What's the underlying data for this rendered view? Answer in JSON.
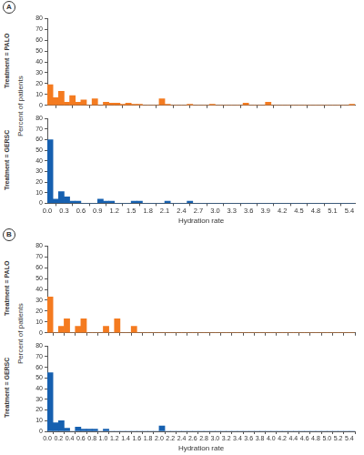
{
  "chart_data": [
    {
      "type": "histogram",
      "annotation": "A",
      "row_label": "Treatment = PALO",
      "ylabel": "Percent of patients",
      "color": "#f47b20",
      "grid": false,
      "tick_labels": "y",
      "bins": [
        0,
        0.1,
        0.2,
        0.3,
        0.4,
        0.5,
        0.6,
        0.7,
        0.8,
        0.9,
        1,
        1.1,
        1.2,
        1.3,
        1.4,
        1.5,
        1.6,
        1.7,
        1.8,
        1.9,
        2,
        2.1,
        2.2,
        2.3,
        2.4,
        2.5,
        2.6,
        2.7,
        2.8,
        2.9,
        3,
        3.1,
        3.2,
        3.3,
        3.4,
        3.5,
        3.6,
        3.7,
        3.8,
        3.9,
        4,
        4.1,
        4.2,
        4.3,
        4.4,
        4.5,
        4.6,
        4.7,
        4.8,
        4.9,
        5,
        5.1,
        5.2,
        5.3,
        5.4,
        5.5
      ],
      "values": [
        19,
        7,
        13,
        3,
        9,
        3,
        5,
        0,
        6,
        0,
        3,
        2,
        2,
        1,
        2,
        1,
        1,
        0,
        0,
        0,
        6,
        1,
        0,
        0,
        0,
        1,
        0,
        0,
        0,
        1,
        0,
        0,
        0,
        0,
        0,
        2,
        0,
        0,
        0,
        3,
        0,
        0,
        0,
        0,
        0,
        0,
        0,
        0,
        0,
        0,
        0,
        0,
        0,
        0,
        1
      ],
      "xlim": [
        0,
        5.5
      ],
      "xticks": [
        {
          "value": 0,
          "label": "0.0"
        },
        0.3,
        0.6,
        0.9,
        1.2,
        1.5,
        1.8,
        2.1,
        2.4,
        2.7,
        {
          "value": 3,
          "label": "3.0"
        },
        3.3,
        3.6,
        3.9,
        4.2,
        4.5,
        4.8,
        5.1,
        5.4
      ],
      "ylim": [
        0,
        80
      ],
      "yticks": [
        0,
        10,
        20,
        30,
        40,
        50,
        60,
        70,
        80
      ]
    },
    {
      "type": "histogram",
      "row_label": "Treatment = GERSC",
      "xlabel": "Hydration rate",
      "color": "#1660b0",
      "grid": false,
      "bins": [
        0,
        0.1,
        0.2,
        0.3,
        0.4,
        0.5,
        0.6,
        0.7,
        0.8,
        0.9,
        1,
        1.1,
        1.2,
        1.3,
        1.4,
        1.5,
        1.6,
        1.7,
        1.8,
        1.9,
        2,
        2.1,
        2.2,
        2.3,
        2.4,
        2.5,
        2.6,
        2.7,
        2.8,
        2.9,
        3,
        3.1,
        3.2,
        3.3,
        3.4,
        3.5,
        3.6,
        3.7,
        3.8,
        3.9,
        4,
        4.1,
        4.2,
        4.3,
        4.4,
        4.5,
        4.6,
        4.7,
        4.8,
        4.9,
        5,
        5.1,
        5.2,
        5.3,
        5.4,
        5.5
      ],
      "values": [
        60,
        4,
        11,
        6,
        2,
        2,
        0,
        0,
        0,
        4,
        2,
        2,
        0,
        0,
        0,
        2,
        2,
        0,
        0,
        0,
        0,
        2,
        0,
        0,
        0,
        2,
        0,
        0,
        0,
        0,
        0,
        0,
        0,
        0,
        0,
        0,
        0,
        0,
        0,
        0,
        0,
        0,
        0,
        0,
        0,
        0,
        0,
        0,
        0,
        0,
        0,
        0,
        0,
        0,
        0
      ],
      "xlim": [
        0,
        5.5
      ],
      "xticks": [
        {
          "value": 0,
          "label": "0.0"
        },
        0.3,
        0.6,
        0.9,
        1.2,
        1.5,
        1.8,
        2.1,
        2.4,
        2.7,
        {
          "value": 3,
          "label": "3.0"
        },
        3.3,
        3.6,
        3.9,
        4.2,
        4.5,
        4.8,
        5.1,
        5.4
      ],
      "ylim": [
        0,
        80
      ],
      "yticks": [
        0,
        10,
        20,
        30,
        40,
        50,
        60,
        70,
        80
      ]
    },
    {
      "type": "histogram",
      "annotation": "B",
      "row_label": "Treatment = PALO",
      "ylabel": "Percent of patients",
      "color": "#f47b20",
      "grid": false,
      "tick_labels": "y",
      "bins": [
        0,
        0.1,
        0.2,
        0.3,
        0.4,
        0.5,
        0.6,
        0.7,
        0.8,
        0.9,
        1,
        1.1,
        1.2,
        1.3,
        1.4,
        1.5,
        1.6,
        1.7,
        1.8,
        1.9,
        2,
        2.1,
        2.2,
        2.3,
        2.4,
        2.5,
        2.6,
        2.7,
        2.8,
        2.9,
        3,
        3.1,
        3.2,
        3.3,
        3.4,
        3.5,
        3.6,
        3.7,
        3.8,
        3.9,
        4,
        4.1,
        4.2,
        4.3,
        4.4,
        4.5,
        4.6,
        4.7,
        4.8,
        4.9,
        5,
        5.1,
        5.2,
        5.3,
        5.4,
        5.5
      ],
      "values": [
        33,
        0,
        6,
        13,
        0,
        6,
        13,
        0,
        0,
        0,
        6,
        0,
        13,
        0,
        0,
        6,
        0,
        0,
        0,
        0,
        0,
        0,
        0,
        0,
        0,
        0,
        0,
        0,
        0,
        0,
        0,
        0,
        0,
        0,
        0,
        0,
        0,
        0,
        0,
        0,
        0,
        0,
        0,
        0,
        0,
        0,
        0,
        0,
        0,
        0,
        0,
        0,
        0,
        0,
        0
      ],
      "xlim": [
        0,
        5.5
      ],
      "xticks": [
        {
          "value": 0,
          "label": "0.0"
        },
        0.2,
        0.4,
        0.6,
        0.8,
        {
          "value": 1,
          "label": "1.0"
        },
        1.2,
        1.4,
        1.6,
        1.8,
        {
          "value": 2,
          "label": "2.0"
        },
        2.2,
        2.4,
        2.6,
        2.8,
        {
          "value": 3,
          "label": "3.0"
        },
        3.2,
        3.4,
        3.6,
        3.8,
        {
          "value": 4,
          "label": "4.0"
        },
        4.2,
        4.4,
        4.6,
        4.8,
        {
          "value": 5,
          "label": "5.0"
        },
        5.2,
        5.4
      ],
      "ylim": [
        0,
        80
      ],
      "yticks": [
        0,
        10,
        20,
        30,
        40,
        50,
        60,
        70,
        80
      ]
    },
    {
      "type": "histogram",
      "row_label": "Treatment = GERSC",
      "xlabel": "Hydration rate",
      "color": "#1660b0",
      "grid": false,
      "bins": [
        0,
        0.1,
        0.2,
        0.3,
        0.4,
        0.5,
        0.6,
        0.7,
        0.8,
        0.9,
        1,
        1.1,
        1.2,
        1.3,
        1.4,
        1.5,
        1.6,
        1.7,
        1.8,
        1.9,
        2,
        2.1,
        2.2,
        2.3,
        2.4,
        2.5,
        2.6,
        2.7,
        2.8,
        2.9,
        3,
        3.1,
        3.2,
        3.3,
        3.4,
        3.5,
        3.6,
        3.7,
        3.8,
        3.9,
        4,
        4.1,
        4.2,
        4.3,
        4.4,
        4.5,
        4.6,
        4.7,
        4.8,
        4.9,
        5,
        5.1,
        5.2,
        5.3,
        5.4,
        5.5
      ],
      "values": [
        55,
        8,
        10,
        3,
        0,
        4,
        2,
        2,
        2,
        0,
        2,
        0,
        0,
        0,
        0,
        0,
        0,
        0,
        0,
        0,
        5,
        0,
        0,
        0,
        0,
        0,
        0,
        0,
        0,
        0,
        0,
        0,
        0,
        0,
        0,
        0,
        0,
        0,
        0,
        0,
        0,
        0,
        0,
        0,
        0,
        0,
        0,
        0,
        0,
        0,
        0,
        0,
        0,
        0,
        0
      ],
      "xlim": [
        0,
        5.5
      ],
      "xticks": [
        {
          "value": 0,
          "label": "0.0"
        },
        0.2,
        0.4,
        0.6,
        0.8,
        {
          "value": 1,
          "label": "1.0"
        },
        1.2,
        1.4,
        1.6,
        1.8,
        {
          "value": 2,
          "label": "2.0"
        },
        2.2,
        2.4,
        2.6,
        2.8,
        {
          "value": 3,
          "label": "3.0"
        },
        3.2,
        3.4,
        3.6,
        3.8,
        {
          "value": 4,
          "label": "4.0"
        },
        4.2,
        4.4,
        4.6,
        4.8,
        {
          "value": 5,
          "label": "5.0"
        },
        5.2,
        5.4
      ],
      "ylim": [
        0,
        80
      ],
      "yticks": [
        0,
        10,
        20,
        30,
        40,
        50,
        60,
        70,
        80
      ]
    }
  ]
}
